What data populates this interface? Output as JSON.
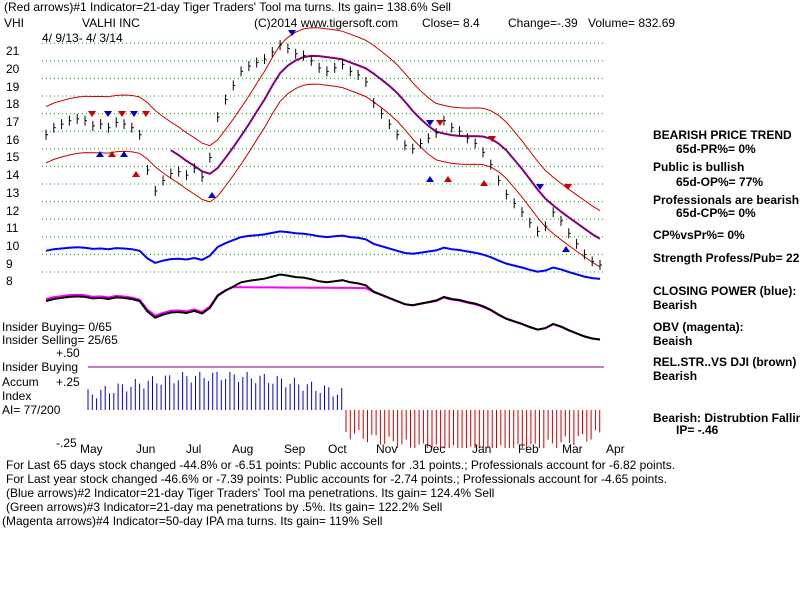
{
  "header": {
    "line1": "(Red arrows)#1 Indicator=21-day Tiger Traders' Tool ma turns. Its gain= 138.6% Sell",
    "ticker": "VHI",
    "company": "VALHI INC",
    "copyright": "(C)2014 www.tigersoft.com",
    "close": "Close=  8.4",
    "change": "Change=-.39",
    "volume": "Volume= 832.69",
    "date_range": "4/ 9/13-  4/ 3/14"
  },
  "chart_data": {
    "type": "line",
    "title": "VALHI INC",
    "y_ticks": [
      "21",
      "20",
      "19",
      "18",
      "17",
      "16",
      "15",
      "14",
      "13",
      "12",
      "11",
      "10",
      "9",
      "8"
    ],
    "ylim": [
      8,
      21
    ],
    "x_months": [
      "May",
      "Jun",
      "Jul",
      "Aug",
      "Sep",
      "Oct",
      "Nov",
      "Dec",
      "Jan",
      "Feb",
      "Mar",
      "Apr"
    ],
    "price": [
      15.8,
      16.2,
      16.4,
      16.6,
      16.7,
      16.6,
      16.3,
      16.4,
      16.2,
      16.5,
      16.4,
      16.2,
      15.8,
      13.8,
      12.6,
      13.2,
      13.6,
      13.7,
      13.5,
      13.9,
      13.4,
      14.5,
      16.8,
      17.8,
      18.6,
      19.4,
      19.7,
      19.9,
      20.1,
      20.5,
      20.9,
      20.7,
      20.4,
      20.3,
      20.0,
      19.6,
      19.4,
      19.6,
      19.8,
      19.4,
      19.2,
      18.8,
      17.6,
      17.0,
      16.4,
      15.8,
      15.2,
      15.0,
      15.3,
      15.6,
      15.9,
      16.6,
      16.2,
      16.0,
      15.6,
      15.3,
      14.8,
      14.1,
      13.2,
      12.4,
      11.9,
      11.4,
      10.8,
      10.3,
      10.6,
      11.4,
      10.9,
      10.2,
      9.6,
      9.0,
      8.6,
      8.4
    ],
    "series": [
      {
        "name": "CLOSING POWER (blue)",
        "status": "Bearish"
      },
      {
        "name": "OBV (magenta)",
        "status": "Beaish"
      },
      {
        "name": "REL.STR..VS DJI (brown)",
        "status": "Bearish"
      }
    ],
    "accum_index_ticks": [
      "+.50",
      "+.25",
      "-.25"
    ],
    "colors": {
      "price_bars": "#000000",
      "bands": "#cc0000",
      "ma": "#800080",
      "closing_power": "#0000ff",
      "obv": "#ff00ff",
      "rel_str": "#000000",
      "accum_pos": "#0000cc",
      "accum_neg": "#cc0000",
      "grid": "#00aa00"
    }
  },
  "right_panel": {
    "trend_title": "BEARISH PRICE TREND",
    "pr": "65d-PR%= 0%",
    "public": "Public is bullish",
    "op": "65d-OP%= 77%",
    "professionals": "Professionals are bearish",
    "cp": "65d-CP%= 0%",
    "cpvspr": "CP%vsPr%=  0%",
    "strength": "Strength Profess/Pub= 22",
    "cp_label": "CLOSING POWER (blue):",
    "cp_status": "Bearish",
    "obv_label": "OBV (magenta):",
    "obv_status": "Beaish",
    "rel_label": "REL.STR..VS DJI (brown)",
    "rel_status": "Bearish",
    "bearish_label": "Bearish: Distrubtion Falling",
    "ip": "IP= -.46"
  },
  "insider": {
    "buying": "Insider Buying= 0/65",
    "selling": "Insider Selling= 25/65",
    "accum_l1": "Insider Buying",
    "accum_l2": "Accum",
    "accum_l3": "Index",
    "ai": "AI= 77/200"
  },
  "footer": {
    "line1": "For Last 65 days stock changed -44.8% or -6.51 points:  Public accounts for  .31 points.;  Professionals account for -6.82 points.",
    "line2": "For Last year stock changed -46.6% or -7.39 points:  Public accounts for -2.74 points.;  Professionals account for -4.65 points.",
    "line3": "(Blue arrows)#2 Indicator=21-day Tiger Traders' Tool ma penetrations. Its gain= 124.4% Sell",
    "line4": "(Green arrows)#3 Indicator=21-day ma penetrations by .5%. Its gain= 122.2% Sell",
    "line5": "(Magenta arrows)#4 Indicator=50-day IPA ma turns. Its gain= 119% Sell"
  }
}
